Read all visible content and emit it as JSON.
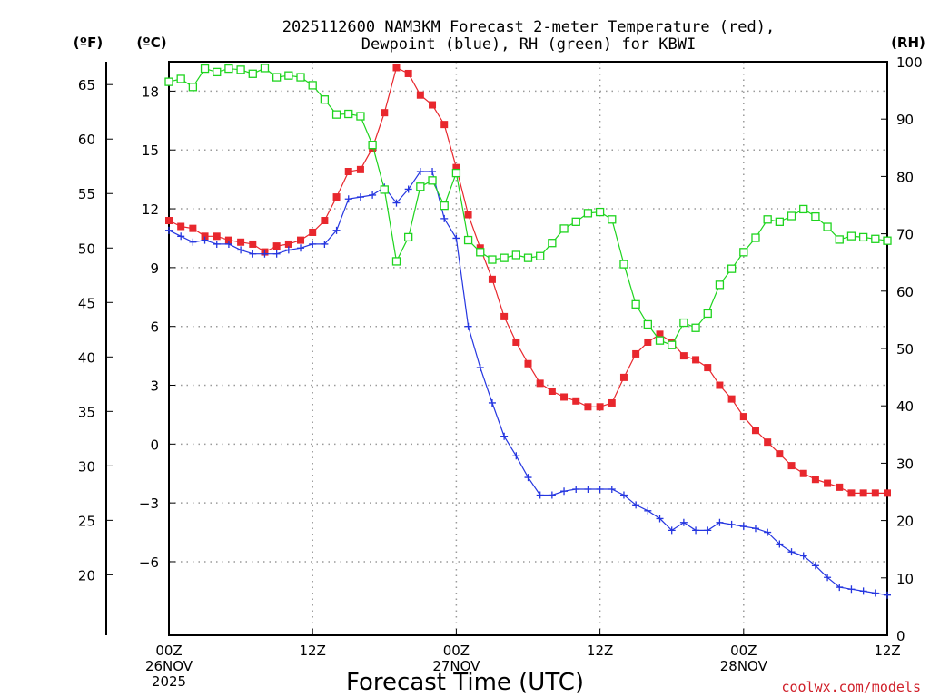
{
  "chart_data": {
    "type": "line",
    "title_line1": "2025112600 NAM3KM Forecast 2-meter Temperature (red),",
    "title_line2": "Dewpoint (blue), RH (green) for KBWI",
    "xlabel": "Forecast Time (UTC)",
    "credit": "coolwx.com/models",
    "units": {
      "fahrenheit": "(ºF)",
      "celsius": "(ºC)",
      "rh": "(RH)"
    },
    "xlim": [
      0,
      60
    ],
    "ylim_c": [
      -9.75,
      19.5
    ],
    "ylim_f": [
      14.45,
      67.1
    ],
    "ylim_rh": [
      0,
      100
    ],
    "ticks_c": [
      {
        "v": 18,
        "label": "18"
      },
      {
        "v": 15,
        "label": "15"
      },
      {
        "v": 12,
        "label": "12"
      },
      {
        "v": 9,
        "label": "9"
      },
      {
        "v": 6,
        "label": "6"
      },
      {
        "v": 3,
        "label": "3"
      },
      {
        "v": 0,
        "label": "0"
      },
      {
        "v": -3,
        "label": "−3"
      },
      {
        "v": -6,
        "label": "−6"
      }
    ],
    "ticks_f": [
      {
        "v": 65,
        "label": "65"
      },
      {
        "v": 60,
        "label": "60"
      },
      {
        "v": 55,
        "label": "55"
      },
      {
        "v": 50,
        "label": "50"
      },
      {
        "v": 45,
        "label": "45"
      },
      {
        "v": 40,
        "label": "40"
      },
      {
        "v": 35,
        "label": "35"
      },
      {
        "v": 30,
        "label": "30"
      },
      {
        "v": 25,
        "label": "25"
      },
      {
        "v": 20,
        "label": "20"
      }
    ],
    "ticks_rh": [
      {
        "v": 100,
        "label": "100"
      },
      {
        "v": 90,
        "label": "90"
      },
      {
        "v": 80,
        "label": "80"
      },
      {
        "v": 70,
        "label": "70"
      },
      {
        "v": 60,
        "label": "60"
      },
      {
        "v": 50,
        "label": "50"
      },
      {
        "v": 40,
        "label": "40"
      },
      {
        "v": 30,
        "label": "30"
      },
      {
        "v": 20,
        "label": "20"
      },
      {
        "v": 10,
        "label": "10"
      },
      {
        "v": 0,
        "label": "0"
      }
    ],
    "x_ticks": [
      {
        "h": 0,
        "lines": [
          "00Z",
          "26NOV",
          "2025"
        ]
      },
      {
        "h": 12,
        "lines": [
          "12Z"
        ]
      },
      {
        "h": 24,
        "lines": [
          "00Z",
          "27NOV"
        ]
      },
      {
        "h": 36,
        "lines": [
          "12Z"
        ]
      },
      {
        "h": 48,
        "lines": [
          "00Z",
          "28NOV"
        ]
      },
      {
        "h": 60,
        "lines": [
          "12Z"
        ]
      }
    ],
    "series": [
      {
        "name": "Temperature",
        "axis": "celsius",
        "color": "#e8272d",
        "marker": "filled-square",
        "x": [
          0,
          1,
          2,
          3,
          4,
          5,
          6,
          7,
          8,
          9,
          10,
          11,
          12,
          13,
          14,
          15,
          16,
          17,
          18,
          19,
          20,
          21,
          22,
          23,
          24,
          25,
          26,
          27,
          28,
          29,
          30,
          31,
          32,
          33,
          34,
          35,
          36,
          37,
          38,
          39,
          40,
          41,
          42,
          43,
          44,
          45,
          46,
          47,
          48,
          49,
          50,
          51,
          52,
          53,
          54,
          55,
          56,
          57,
          58,
          59,
          60
        ],
        "values": [
          11.4,
          11.1,
          11.0,
          10.6,
          10.6,
          10.4,
          10.3,
          10.2,
          9.8,
          10.1,
          10.2,
          10.4,
          10.8,
          11.4,
          12.6,
          13.9,
          14.0,
          15.1,
          16.9,
          19.2,
          18.9,
          17.8,
          17.3,
          16.3,
          14.1,
          11.7,
          10.0,
          8.4,
          6.5,
          5.2,
          4.1,
          3.1,
          2.7,
          2.4,
          2.2,
          1.9,
          1.9,
          2.1,
          3.4,
          4.6,
          5.2,
          5.6,
          5.2,
          4.5,
          4.3,
          3.9,
          3.0,
          2.3,
          1.4,
          0.7,
          0.1,
          -0.5,
          -1.1,
          -1.5,
          -1.8,
          -2.0,
          -2.2,
          -2.5,
          -2.5,
          -2.5,
          -2.5
        ]
      },
      {
        "name": "Dewpoint",
        "axis": "celsius",
        "color": "#2536e0",
        "marker": "plus",
        "x": [
          0,
          1,
          2,
          3,
          4,
          5,
          6,
          7,
          8,
          9,
          10,
          11,
          12,
          13,
          14,
          15,
          16,
          17,
          18,
          19,
          20,
          21,
          22,
          23,
          24,
          25,
          26,
          27,
          28,
          29,
          30,
          31,
          32,
          33,
          34,
          35,
          36,
          37,
          38,
          39,
          40,
          41,
          42,
          43,
          44,
          45,
          46,
          47,
          48,
          49,
          50,
          51,
          52,
          53,
          54,
          55,
          56,
          57,
          58,
          59,
          60
        ],
        "values": [
          10.9,
          10.6,
          10.3,
          10.4,
          10.2,
          10.2,
          9.9,
          9.7,
          9.7,
          9.7,
          9.9,
          10.0,
          10.2,
          10.2,
          10.9,
          12.5,
          12.6,
          12.7,
          13.1,
          12.3,
          13.0,
          13.9,
          13.9,
          11.5,
          10.5,
          6.0,
          3.9,
          2.1,
          0.4,
          -0.6,
          -1.7,
          -2.6,
          -2.6,
          -2.4,
          -2.3,
          -2.3,
          -2.3,
          -2.3,
          -2.6,
          -3.1,
          -3.4,
          -3.8,
          -4.4,
          -4.0,
          -4.4,
          -4.4,
          -4.0,
          -4.1,
          -4.2,
          -4.3,
          -4.5,
          -5.1,
          -5.5,
          -5.7,
          -6.2,
          -6.8,
          -7.3,
          -7.4,
          -7.5,
          -7.6,
          -7.7
        ]
      },
      {
        "name": "RH",
        "axis": "rh",
        "color": "#1ed41e",
        "marker": "open-square",
        "x": [
          0,
          1,
          2,
          3,
          4,
          5,
          6,
          7,
          8,
          9,
          10,
          11,
          12,
          13,
          14,
          15,
          16,
          17,
          18,
          19,
          20,
          21,
          22,
          23,
          24,
          25,
          26,
          27,
          28,
          29,
          30,
          31,
          32,
          33,
          34,
          35,
          36,
          37,
          38,
          39,
          40,
          41,
          42,
          43,
          44,
          45,
          46,
          47,
          48,
          49,
          50,
          51,
          52,
          53,
          54,
          55,
          56,
          57,
          58,
          59,
          60
        ],
        "values": [
          96.5,
          97,
          95.6,
          98.8,
          98.2,
          98.8,
          98.6,
          97.9,
          98.9,
          97.3,
          97.6,
          97.3,
          95.9,
          93.4,
          90.8,
          90.9,
          90.5,
          85.5,
          77.7,
          65.2,
          69.4,
          78.2,
          79.3,
          74.9,
          80.6,
          68.9,
          66.8,
          65.5,
          65.8,
          66.3,
          65.8,
          66.1,
          68.4,
          70.9,
          72.1,
          73.6,
          73.8,
          72.5,
          64.7,
          57.7,
          54.2,
          51.4,
          50.6,
          54.5,
          53.6,
          56.1,
          61.1,
          63.9,
          66.8,
          69.3,
          72.5,
          72.1,
          73.1,
          74.3,
          73.0,
          71.2,
          69.0,
          69.6,
          69.4,
          69.1,
          68.8
        ]
      }
    ]
  }
}
